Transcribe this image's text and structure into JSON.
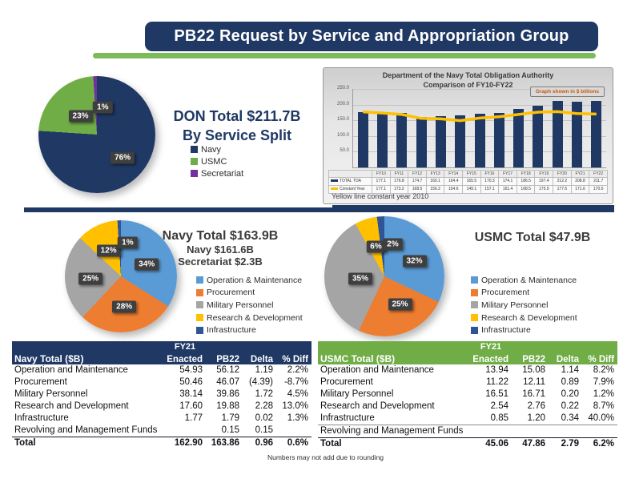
{
  "slide_title": "PB22 Request by Service and Appropriation Group",
  "footnote": "Numbers may not add due to rounding",
  "colors": {
    "navy": "#1F3864",
    "green": "#70AD47",
    "underline_green": "#7BBB59",
    "purple": "#7030A0",
    "light_blue": "#5B9BD5",
    "orange": "#ED7D31",
    "gray": "#A5A5A5",
    "yellow": "#FFC000",
    "infrastructure_blue": "#2F5597",
    "badge_text": "#C55A11"
  },
  "don_section": {
    "heading1": "DON Total $211.7B",
    "heading2": "By Service Split"
  },
  "navy_section": {
    "heading1": "Navy Total $163.9B",
    "heading2": "Navy $161.6B",
    "heading3": "Secretariat $2.3B"
  },
  "usmc_section": {
    "heading1": "USMC Total $47.9B"
  },
  "appropriation_legend": [
    {
      "label": "Operation & Maintenance",
      "color": "#5B9BD5"
    },
    {
      "label": "Procurement",
      "color": "#ED7D31"
    },
    {
      "label": "Military Personnel",
      "color": "#A5A5A5"
    },
    {
      "label": "Research & Development",
      "color": "#FFC000"
    },
    {
      "label": "Infrastructure",
      "color": "#2F5597"
    }
  ],
  "toa_chart": {
    "title1": "Department of the Navy Total Obligation Authority",
    "title2": "Comparison of FY10-FY22",
    "badge": "Graph shown in $ billions",
    "note": "Yellow line constant year 2010",
    "y_ticks": [
      "250.0",
      "200.0",
      "150.0",
      "100.0",
      "50.0"
    ]
  },
  "chart_data": [
    {
      "id": "don_pie",
      "type": "pie",
      "title": "DON Total $211.7B By Service Split",
      "slices": [
        {
          "label": "Navy",
          "value": 76,
          "color": "#1F3864"
        },
        {
          "label": "USMC",
          "value": 23,
          "color": "#70AD47"
        },
        {
          "label": "Secretariat",
          "value": 1,
          "color": "#7030A0"
        }
      ],
      "data_labels": [
        "76%",
        "23%",
        "1%"
      ],
      "label_pos": [
        [
          72,
          70
        ],
        [
          36,
          34
        ],
        [
          55,
          27
        ]
      ]
    },
    {
      "id": "navy_pie",
      "type": "pie",
      "title": "Navy Total $163.9B",
      "slices": [
        {
          "label": "Operation & Maintenance",
          "value": 34,
          "color": "#5B9BD5"
        },
        {
          "label": "Procurement",
          "value": 28,
          "color": "#ED7D31"
        },
        {
          "label": "Military Personnel",
          "value": 25,
          "color": "#A5A5A5"
        },
        {
          "label": "Research & Development",
          "value": 12,
          "color": "#FFC000"
        },
        {
          "label": "Infrastructure",
          "value": 1,
          "color": "#2F5597"
        }
      ],
      "data_labels": [
        "34%",
        "28%",
        "25%",
        "12%",
        "1%"
      ],
      "label_pos": [
        [
          73,
          39
        ],
        [
          53,
          77
        ],
        [
          23,
          52
        ],
        [
          39,
          27
        ],
        [
          56,
          20
        ]
      ]
    },
    {
      "id": "usmc_pie",
      "type": "pie",
      "title": "USMC Total $47.9B",
      "slices": [
        {
          "label": "Operation & Maintenance",
          "value": 32,
          "color": "#5B9BD5"
        },
        {
          "label": "Procurement",
          "value": 25,
          "color": "#ED7D31"
        },
        {
          "label": "Military Personnel",
          "value": 35,
          "color": "#A5A5A5"
        },
        {
          "label": "Research & Development",
          "value": 6,
          "color": "#FFC000"
        },
        {
          "label": "Infrastructure",
          "value": 2,
          "color": "#2F5597"
        }
      ],
      "data_labels": [
        "32%",
        "25%",
        "35%",
        "6%",
        "2%"
      ],
      "label_pos": [
        [
          75,
          37
        ],
        [
          63,
          73
        ],
        [
          30,
          52
        ],
        [
          43,
          25
        ],
        [
          57,
          23
        ]
      ]
    },
    {
      "id": "toa_chart",
      "type": "bar",
      "title": "Department of the Navy Total Obligation Authority Comparison of FY10-FY22",
      "categories": [
        "FY10",
        "FY11",
        "FY12",
        "FY13",
        "FY14",
        "FY15",
        "FY16",
        "FY17",
        "FY18",
        "FY19",
        "FY20",
        "FY21",
        "FY22"
      ],
      "series": [
        {
          "name": "TOTAL TOA",
          "render": "bar",
          "color": "#1F3864",
          "values": [
            177.1,
            176.8,
            174.7,
            160.1,
            164.4,
            165.5,
            170.3,
            174.1,
            186.5,
            197.4,
            212.2,
            208.8,
            211.7
          ]
        },
        {
          "name": "Constant Year",
          "render": "line",
          "color": "#FFC000",
          "values": [
            177.1,
            173.2,
            168.5,
            156.2,
            154.6,
            149.1,
            157.1,
            161.4,
            168.5,
            175.9,
            177.5,
            171.6,
            170.0
          ]
        }
      ],
      "ylim": [
        0,
        250
      ],
      "grid": true,
      "legend_position": "table-below",
      "annotations": [
        "Graph shown in $ billions",
        "Yellow line constant year 2010"
      ]
    }
  ],
  "navy_table": {
    "title_cell": "Navy Total ($B)",
    "col_top": "FY21",
    "columns": [
      "Enacted",
      "PB22",
      "Delta",
      "% Diff"
    ],
    "header_color": "#1F3864",
    "rows": [
      {
        "label": "Operation and Maintenance",
        "enacted": "54.93",
        "pb22": "56.12",
        "delta": "1.19",
        "diff": "2.2%"
      },
      {
        "label": "Procurement",
        "enacted": "50.46",
        "pb22": "46.07",
        "delta": "(4.39)",
        "diff": "-8.7%"
      },
      {
        "label": "Military Personnel",
        "enacted": "38.14",
        "pb22": "39.86",
        "delta": "1.72",
        "diff": "4.5%"
      },
      {
        "label": "Research and Development",
        "enacted": "17.60",
        "pb22": "19.88",
        "delta": "2.28",
        "diff": "13.0%"
      },
      {
        "label": "Infrastructure",
        "enacted": "1.77",
        "pb22": "1.79",
        "delta": "0.02",
        "diff": "1.3%"
      },
      {
        "label": "Revolving and Management Funds",
        "enacted": "",
        "pb22": "0.15",
        "delta": "0.15",
        "diff": ""
      }
    ],
    "total": {
      "label": "Total",
      "enacted": "162.90",
      "pb22": "163.86",
      "delta": "0.96",
      "diff": "0.6%"
    }
  },
  "usmc_table": {
    "title_cell": "USMC Total ($B)",
    "col_top": "FY21",
    "columns": [
      "Enacted",
      "PB22",
      "Delta",
      "% Diff"
    ],
    "header_color": "#70AD47",
    "underline_after_row": 4,
    "rows": [
      {
        "label": "Operation and Maintenance",
        "enacted": "13.94",
        "pb22": "15.08",
        "delta": "1.14",
        "diff": "8.2%"
      },
      {
        "label": "Procurement",
        "enacted": "11.22",
        "pb22": "12.11",
        "delta": "0.89",
        "diff": "7.9%"
      },
      {
        "label": "Military Personnel",
        "enacted": "16.51",
        "pb22": "16.71",
        "delta": "0.20",
        "diff": "1.2%"
      },
      {
        "label": "Research and Development",
        "enacted": "2.54",
        "pb22": "2.76",
        "delta": "0.22",
        "diff": "8.7%"
      },
      {
        "label": "Infrastructure",
        "enacted": "0.85",
        "pb22": "1.20",
        "delta": "0.34",
        "diff": "40.0%"
      },
      {
        "label": "Revolving and Management Funds",
        "enacted": "",
        "pb22": "",
        "delta": "",
        "diff": ""
      }
    ],
    "total": {
      "label": "Total",
      "enacted": "45.06",
      "pb22": "47.86",
      "delta": "2.79",
      "diff": "6.2%"
    }
  }
}
